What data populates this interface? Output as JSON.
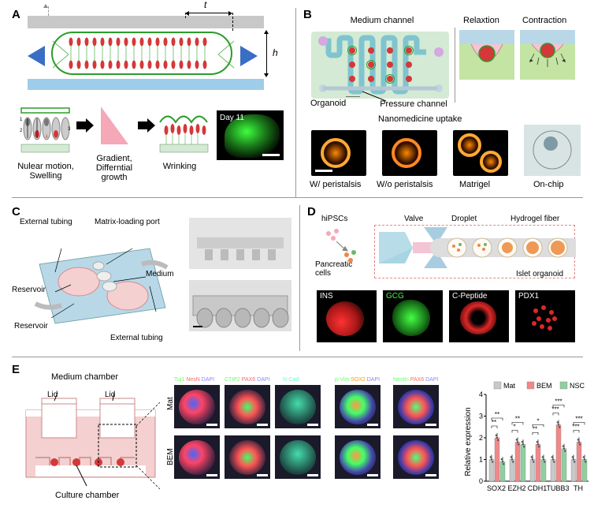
{
  "panelA": {
    "label": "A",
    "dim_t": "t",
    "dim_h": "h",
    "sub1": "Nulear motion,\nSwelling",
    "sub2": "Gradient,\nDifferntial\ngrowth",
    "sub3": "Wrinking",
    "sub4": "Day 11"
  },
  "panelB": {
    "label": "B",
    "top_mid": "Medium channel",
    "top_r1": "Relaxtion",
    "top_r2": "Contraction",
    "mid_l": "Organoid",
    "mid_r": "Pressure channel",
    "nano_title": "Nanomedicine uptake",
    "sub1": "W/ peristalsis",
    "sub2": "W/o peristalsis",
    "sub3": "Matrigel",
    "sub4": "On-chip"
  },
  "panelC": {
    "label": "C",
    "lb1": "External tubing",
    "lb2": "Matrix-loading port",
    "lb3": "Reservoir",
    "lb4": "Medium",
    "lb5": "Reservoir",
    "lb6": "External tubing"
  },
  "panelD": {
    "label": "D",
    "t1": "hiPSCs",
    "t2": "Valve",
    "t3": "Droplet",
    "t4": "Hydrogel fiber",
    "t5": "Pancreatic\ncells",
    "t6": "Islet organoid",
    "f1": "INS",
    "f2": "GCG",
    "f3": "C-Peptide",
    "f4": "PDX1"
  },
  "panelE": {
    "label": "E",
    "top": "Medium chamber",
    "lid": "Lid",
    "bottom": "Culture chamber",
    "row1": "Mat",
    "row2": "BEM",
    "h1": "Tuj1 NesN DAPI",
    "h2": "CTIP2 PAX6 DAPI",
    "h3": "N-Cad",
    "h4": "p-Vim SOX2 DAPI",
    "h5": "Nestin PAX6 DAPI",
    "chart": {
      "ylabel": "Relative expression",
      "ymax": 4,
      "ytick": 1,
      "legend": [
        "Mat",
        "BEM",
        "NSC"
      ],
      "legend_colors": [
        "#c8c8c8",
        "#f08888",
        "#8fcf9f"
      ],
      "genes": [
        "SOX2",
        "EZH2",
        "CDH1",
        "TUBB3",
        "TH"
      ],
      "sig": [
        "**",
        "**",
        "*",
        "**",
        "**",
        "*",
        "***",
        "***",
        "***",
        "***",
        "*"
      ],
      "data": {
        "Mat": [
          1.0,
          1.0,
          1.0,
          1.0,
          1.0
        ],
        "BEM": [
          2.0,
          1.8,
          1.7,
          2.6,
          1.8
        ],
        "NSC": [
          0.9,
          1.7,
          1.0,
          1.5,
          1.0
        ]
      }
    }
  },
  "colors": {
    "green": "#2a9d2a",
    "blue_arrow": "#3a6ec4",
    "pink": "#f4c4d4",
    "chip_green": "#c4e4a4",
    "chip_blue": "#b8d8e8",
    "red_fluor": "#e04444",
    "green_fluor": "#3eff3e",
    "pink_chip": "#f4d0d0"
  }
}
